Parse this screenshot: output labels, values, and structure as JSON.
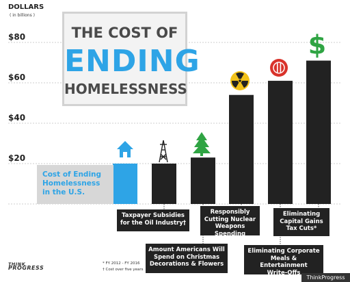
{
  "chart_data": {
    "type": "bar",
    "title_lines": [
      "THE COST OF",
      "ENDING",
      "HOMELESSNESS"
    ],
    "ylabel": "DOLLARS",
    "ylabel_sub": "( in billions )",
    "yticks": [
      "$20",
      "$40",
      "$60",
      "$80"
    ],
    "ylim": [
      0,
      85
    ],
    "categories": [
      "Cost of Ending Homelessness in the U.S.",
      "Taxpayer Subsidies for the Oil Industry†",
      "Amount Americans Will Spend on Christmas Decorations & Flowers",
      "Responsibly Cutting Nuclear Weapons Spending",
      "Eliminating Corporate Meals & Entertainment Write-Offs",
      "Eliminating Capital Gains Tax Cuts*"
    ],
    "values": [
      20,
      20,
      23,
      54,
      61,
      71
    ],
    "colors": [
      "#2ea4e6",
      "#222222",
      "#222222",
      "#222222",
      "#222222",
      "#222222"
    ],
    "icons": [
      "house-icon",
      "oil-derrick-icon",
      "christmas-tree-icon",
      "radiation-icon",
      "plate-fork-knife-icon",
      "dollar-sign-icon"
    ],
    "grid": true,
    "legend": "none"
  },
  "labels": {
    "homeless": "Cost of Ending\nHomelessness\nin the U.S.",
    "oil": "Taxpayer Subsidies\nfor the Oil Industry†",
    "christmas": "Amount Americans Will\nSpend on Christmas\nDecorations & Flowers",
    "nuclear": "Responsibly\nCutting Nuclear\nWeapons Spending",
    "meals": "Eliminating Corporate\nMeals & Entertainment\nWrite-Offs",
    "capital": "Eliminating\nCapital Gains\nTax Cuts*"
  },
  "footnotes": [
    "* FY 2012 - FY 2016",
    "† Cost over five years"
  ],
  "logo": {
    "line1": "THINK",
    "line2": "PROGRESS"
  },
  "credit": "ThinkProgress",
  "colors": {
    "accent": "#2ea4e6",
    "bar": "#222222",
    "icon_green": "#2fa443",
    "icon_red": "#d9332b",
    "icon_yellow": "#f2c21a"
  }
}
